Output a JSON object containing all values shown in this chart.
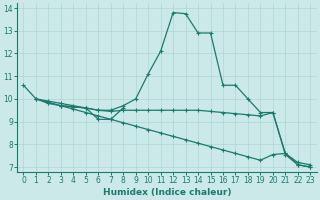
{
  "xlabel": "Humidex (Indice chaleur)",
  "background_color": "#cce9e9",
  "grid_color": "#aed4d4",
  "line_color": "#1a7a6e",
  "xlim": [
    -0.5,
    23.5
  ],
  "ylim": [
    6.8,
    14.2
  ],
  "yticks": [
    7,
    8,
    9,
    10,
    11,
    12,
    13,
    14
  ],
  "xticks": [
    0,
    1,
    2,
    3,
    4,
    5,
    6,
    7,
    8,
    9,
    10,
    11,
    12,
    13,
    14,
    15,
    16,
    17,
    18,
    19,
    20,
    21,
    22,
    23
  ],
  "lines": [
    {
      "x": [
        0,
        1,
        2,
        3,
        4,
        5,
        6,
        7,
        8,
        9,
        10,
        11,
        12,
        13,
        14,
        15,
        16,
        17,
        18,
        19,
        20,
        21,
        22,
        23
      ],
      "y": [
        10.6,
        10.0,
        9.8,
        9.7,
        9.65,
        9.6,
        9.5,
        9.5,
        9.7,
        10.0,
        11.1,
        12.1,
        13.8,
        13.75,
        12.9,
        12.9,
        10.6,
        10.6,
        10.0,
        9.4,
        9.4,
        7.6,
        7.2,
        7.1
      ]
    },
    {
      "x": [
        1,
        2,
        3,
        4,
        5,
        6,
        7,
        8,
        9,
        10,
        11,
        12,
        13,
        14,
        15,
        16,
        17,
        18,
        19,
        20,
        21,
        22,
        23
      ],
      "y": [
        10.0,
        9.85,
        9.7,
        9.55,
        9.4,
        9.25,
        9.1,
        8.95,
        8.8,
        8.65,
        8.5,
        8.35,
        8.2,
        8.05,
        7.9,
        7.75,
        7.6,
        7.45,
        7.3,
        7.55,
        7.6,
        7.1,
        7.0
      ]
    },
    {
      "x": [
        1,
        2,
        3,
        4,
        5,
        6,
        7,
        8
      ],
      "y": [
        10.0,
        9.9,
        9.8,
        9.7,
        9.6,
        9.1,
        9.1,
        9.6
      ]
    },
    {
      "x": [
        3,
        4,
        5,
        6,
        7,
        8,
        9,
        10,
        11,
        12,
        13,
        14,
        15,
        16,
        17,
        18,
        19,
        20,
        21,
        22,
        23
      ],
      "y": [
        9.7,
        9.65,
        9.6,
        9.5,
        9.45,
        9.5,
        9.5,
        9.5,
        9.5,
        9.5,
        9.5,
        9.5,
        9.45,
        9.4,
        9.35,
        9.3,
        9.25,
        9.4,
        7.55,
        7.1,
        7.0
      ]
    }
  ]
}
